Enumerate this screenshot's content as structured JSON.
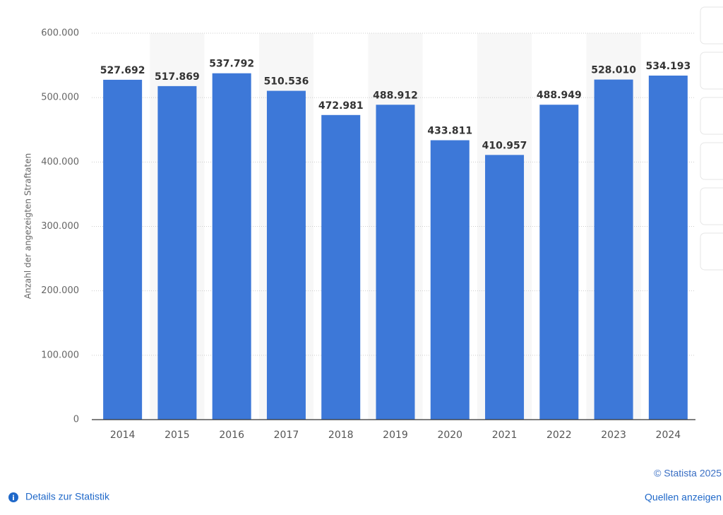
{
  "chart_data": {
    "type": "bar",
    "y_label": "Anzahl der angezeigten Straftaten",
    "categories": [
      "2014",
      "2015",
      "2016",
      "2017",
      "2018",
      "2019",
      "2020",
      "2021",
      "2022",
      "2023",
      "2024"
    ],
    "values": [
      527692,
      517869,
      537792,
      510536,
      472981,
      488912,
      433811,
      410957,
      488949,
      528010,
      534193
    ],
    "value_labels": [
      "527.692",
      "517.869",
      "537.792",
      "510.536",
      "472.981",
      "488.912",
      "433.811",
      "410.957",
      "488.949",
      "528.010",
      "534.193"
    ],
    "color": "#3d78d8",
    "ylim": [
      0,
      600000
    ],
    "yticks": [
      0,
      {
        "value": 100000,
        "label": "100.000"
      },
      {
        "value": 200000,
        "label": "200.000"
      },
      {
        "value": 300000,
        "label": "300.000"
      },
      {
        "value": 400000,
        "label": "400.000"
      },
      {
        "value": 500000,
        "label": "500.000"
      },
      {
        "value": 600000,
        "label": "600.000"
      }
    ],
    "grid": true
  },
  "footer": {
    "copyright": "© Statista 2025",
    "sources": "Quellen anzeigen",
    "details": "Details zur Statistik"
  }
}
